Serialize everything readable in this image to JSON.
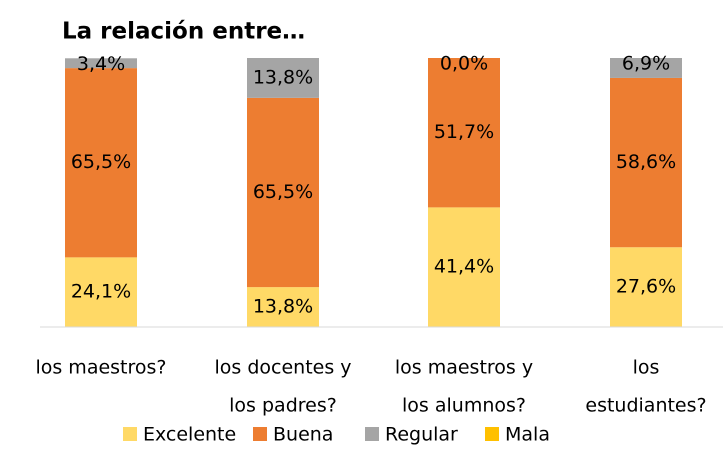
{
  "chart_data": {
    "type": "stacked_bar",
    "title": "La relación entre…",
    "categories": [
      [
        "los maestros?"
      ],
      [
        "los docentes y",
        "los padres?"
      ],
      [
        "los maestros y",
        "los alumnos?"
      ],
      [
        "los",
        "estudiantes?"
      ]
    ],
    "series": [
      {
        "name": "Excelente",
        "color": "#ffd966",
        "values": [
          24.1,
          13.8,
          41.4,
          27.6
        ],
        "value_labels": [
          "24,1%",
          "13,8%",
          "41,4%",
          "27,6%"
        ]
      },
      {
        "name": "Buena",
        "color": "#ed7d31",
        "values": [
          65.5,
          65.5,
          51.7,
          58.6
        ],
        "value_labels": [
          "65,5%",
          "65,5%",
          "51,7%",
          "58,6%"
        ]
      },
      {
        "name": "Regular",
        "color": "#a5a5a5",
        "values": [
          3.4,
          13.8,
          0,
          6.9
        ],
        "value_labels": [
          "3,4%",
          "13,8%",
          "0,0%",
          "6,9%"
        ]
      },
      {
        "name": "Mala",
        "color": "#ffc000",
        "values": [
          null,
          null,
          null,
          null
        ]
      }
    ],
    "ylim": [
      0,
      93.1
    ]
  }
}
